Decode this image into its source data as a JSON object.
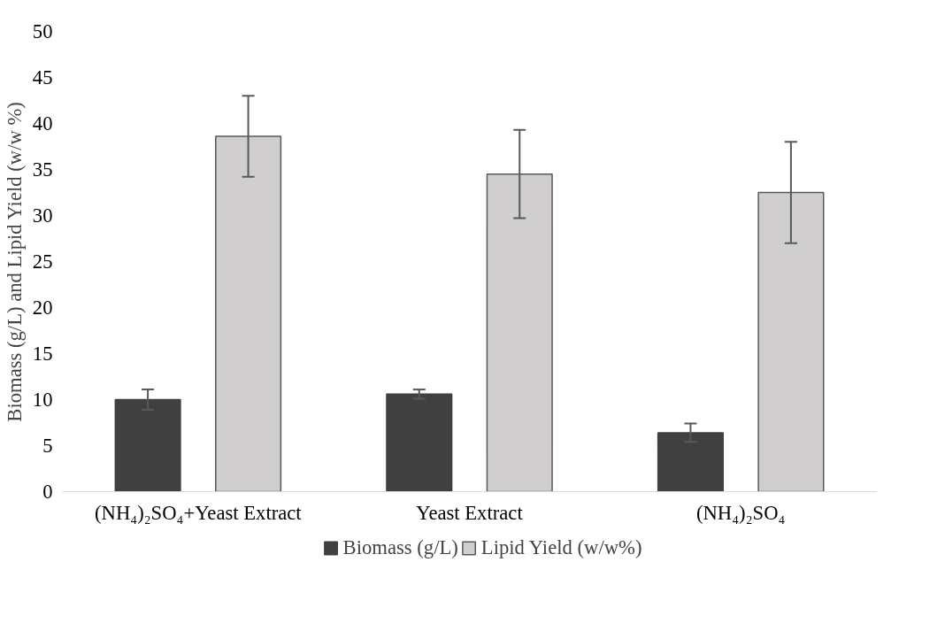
{
  "chart_data": {
    "type": "bar",
    "ylabel": "Biomass (g/L) and Lipid Yield (w/w %)",
    "categories": [
      "(NH₄)₂SO₄+Yeast Extract",
      "Yeast Extract",
      "(NH₄)₂SO₄"
    ],
    "series": [
      {
        "name": "Biomass (g/L)",
        "color": "#404040",
        "values": [
          10.0,
          10.6,
          6.4
        ],
        "errors": [
          1.1,
          0.5,
          1.0
        ]
      },
      {
        "name": "Lipid Yield (w/w%)",
        "color": "#d0cece",
        "values": [
          38.6,
          34.5,
          32.5
        ],
        "errors": [
          4.4,
          4.8,
          5.5
        ]
      }
    ],
    "ylim": [
      0,
      50
    ],
    "yticks": [
      0,
      5,
      10,
      15,
      20,
      25,
      30,
      35,
      40,
      45,
      50
    ],
    "grid": false,
    "legend": "bottom"
  }
}
